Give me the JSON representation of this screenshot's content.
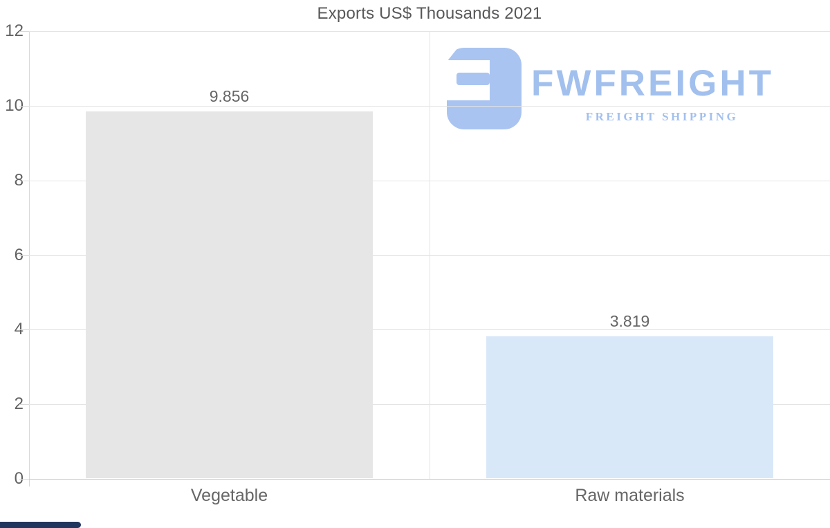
{
  "title": "Exports US$ Thousands 2021",
  "logo": {
    "brand": "FWFREIGHT",
    "tagline": "FREIGHT SHIPPING",
    "color": "#a2c0ee",
    "icon_color": "#a9c4f1"
  },
  "colors": {
    "text": "#58585a",
    "axis_text": "#616161",
    "gridline": "#e4e4e4",
    "axis_line": "#d9d9d9",
    "baseline": "#c9c9c9",
    "bottom_accent_bar": "#21365e"
  },
  "chart_data": {
    "type": "bar",
    "title": "Exports US$ Thousands 2021",
    "categories": [
      "Vegetable",
      "Raw materials"
    ],
    "values": [
      9.856,
      3.819
    ],
    "value_labels": [
      "9.856",
      "3.819"
    ],
    "bar_colors": [
      "#e6e6e6",
      "#d9e8f8"
    ],
    "xlabel": "",
    "ylabel": "",
    "ylim": [
      0,
      12
    ],
    "yticks": [
      0,
      2,
      4,
      6,
      8,
      10,
      12
    ],
    "grid": true,
    "legend": false
  }
}
